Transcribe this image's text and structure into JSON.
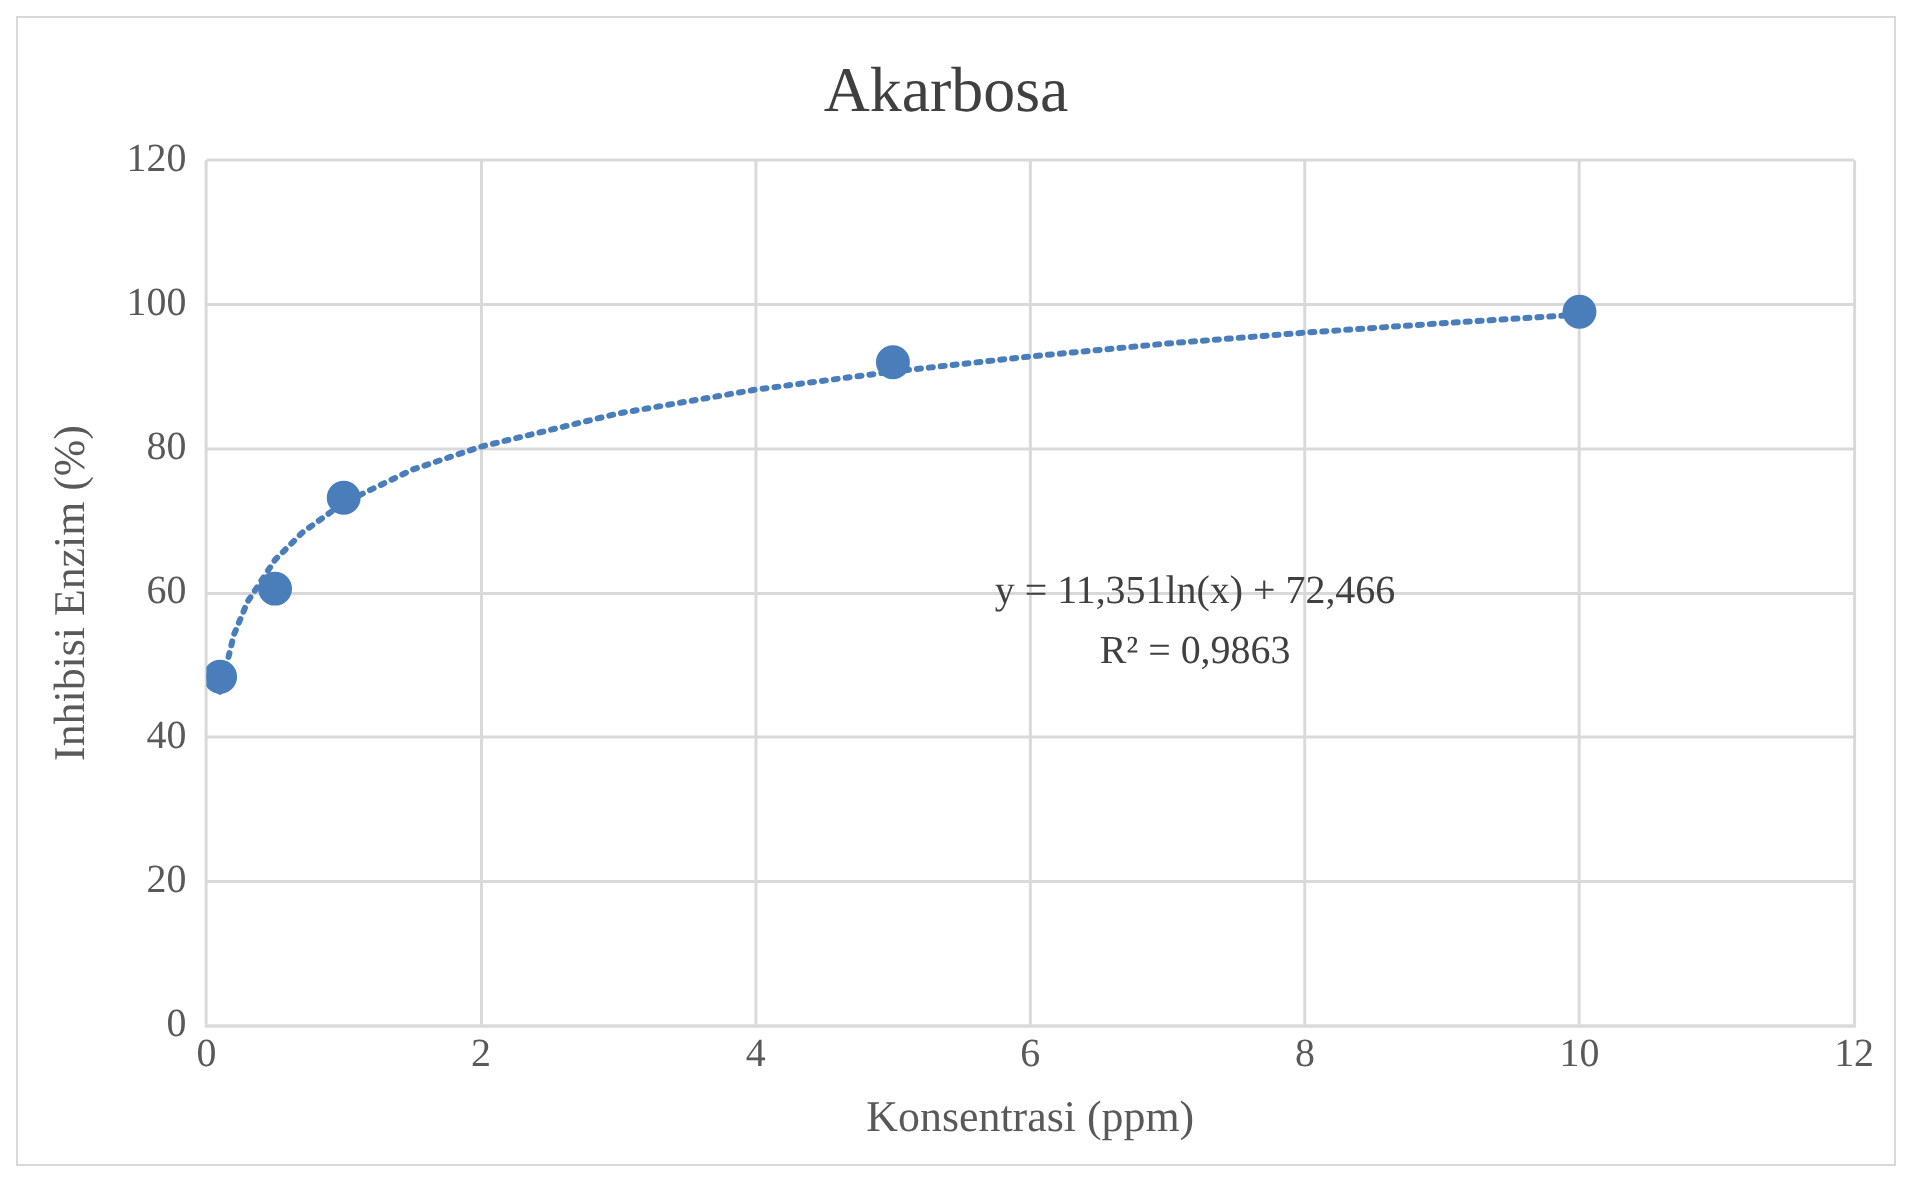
{
  "chart_data": {
    "type": "scatter",
    "title": "Akarbosa",
    "xlabel": "Konsentrasi (ppm)",
    "ylabel": "Inhibisi Enzim (%)",
    "xlim": [
      0,
      12
    ],
    "xticks": [
      0,
      2,
      4,
      6,
      8,
      10,
      12
    ],
    "ylim": [
      0,
      120
    ],
    "yticks": [
      0,
      20,
      40,
      60,
      80,
      100,
      120
    ],
    "grid": true,
    "legend": false,
    "series": [
      {
        "color": "#4a7ebb",
        "marker": "circle",
        "x": [
          0.1,
          0.5,
          1,
          5,
          10
        ],
        "values": [
          48.4,
          60.6,
          73.2,
          92.0,
          99.0
        ]
      },
      {
        "type": "line",
        "color": "#4a7ebb",
        "marker": "none",
        "line_style": "dotted",
        "x": [
          0.1,
          0.2,
          0.3,
          0.5,
          0.7,
          1,
          1.5,
          2,
          3,
          4,
          5,
          6,
          7,
          8,
          9,
          10
        ],
        "values": [
          46.3,
          54.2,
          58.8,
          64.6,
          68.4,
          72.5,
          77.1,
          80.3,
          84.9,
          88.2,
          90.7,
          92.8,
          94.6,
          96.1,
          97.4,
          98.6
        ]
      }
    ],
    "annotations": [
      "y = 11,351ln(x) + 72,466",
      "R² = 0,9863"
    ]
  }
}
